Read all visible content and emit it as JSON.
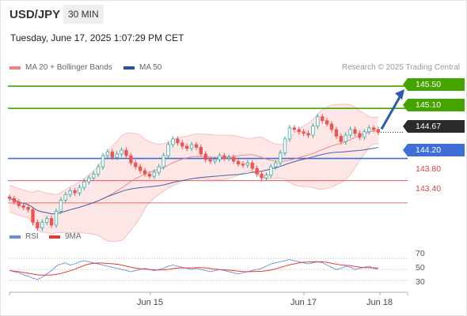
{
  "header": {
    "pair": "USD/JPY",
    "timeframe": "30 MIN",
    "datetime": "Tuesday, June 17, 2025 1:07:29 PM CET"
  },
  "legend": {
    "ma20": "MA 20 + Bollinger Bands",
    "ma50": "MA 50",
    "credit": "Research © 2025 Trading Central"
  },
  "rsi_legend": {
    "rsi": "RSI",
    "ma": "9MA"
  },
  "colors": {
    "green": "#44a400",
    "blue": "#3e6ed6",
    "red": "#d64545",
    "bullish": "#26a69a",
    "bearish": "#ef5350",
    "band": "#fde2e2",
    "ma50": "#4a5fa8",
    "rsi": "#6b8fd6",
    "rsi_ma": "#e53935"
  },
  "chart_data": {
    "type": "candlestick",
    "instrument": "USD/JPY",
    "timeframe": "30 MIN",
    "ylim": [
      143.0,
      145.7
    ],
    "levels": [
      {
        "label": "145.50",
        "value": 145.5,
        "kind": "resistance",
        "color": "green"
      },
      {
        "label": "145.10",
        "value": 145.1,
        "kind": "resistance",
        "color": "green"
      },
      {
        "label": "144.67",
        "value": 144.67,
        "kind": "current",
        "color": "dark"
      },
      {
        "label": "144.20",
        "value": 144.2,
        "kind": "pivot",
        "color": "blue"
      },
      {
        "label": "143.80",
        "value": 143.8,
        "kind": "support",
        "color": "red"
      },
      {
        "label": "143.40",
        "value": 143.4,
        "kind": "support",
        "color": "red"
      }
    ],
    "x_ticks": [
      "Jun 15",
      "Jun 17",
      "Jun 18"
    ],
    "close": [
      143.48,
      143.42,
      143.35,
      143.32,
      143.28,
      143.05,
      142.95,
      143.05,
      143.12,
      143.0,
      143.25,
      143.45,
      143.55,
      143.62,
      143.58,
      143.68,
      143.78,
      143.85,
      143.92,
      144.05,
      144.25,
      144.32,
      144.22,
      144.28,
      144.35,
      144.25,
      144.12,
      144.05,
      143.98,
      143.92,
      143.88,
      143.95,
      144.05,
      144.25,
      144.45,
      144.55,
      144.48,
      144.42,
      144.38,
      144.45,
      144.4,
      144.28,
      144.18,
      144.15,
      144.18,
      144.25,
      144.2,
      144.22,
      144.15,
      144.1,
      144.08,
      144.12,
      144.02,
      143.92,
      143.85,
      143.9,
      144.05,
      144.12,
      144.3,
      144.55,
      144.75,
      144.72,
      144.68,
      144.65,
      144.62,
      144.78,
      144.95,
      144.88,
      144.82,
      144.72,
      144.6,
      144.5,
      144.62,
      144.72,
      144.65,
      144.58,
      144.68,
      144.75,
      144.72,
      144.67
    ],
    "rsi": [
      48,
      46,
      44,
      40,
      38,
      34,
      32,
      36,
      42,
      48,
      56,
      60,
      62,
      58,
      60,
      64,
      66,
      64,
      62,
      60,
      58,
      56,
      54,
      52,
      50,
      48,
      46,
      48,
      50,
      52,
      50,
      48,
      50,
      52,
      56,
      58,
      56,
      54,
      52,
      50,
      52,
      50,
      48,
      46,
      48,
      50,
      48,
      46,
      44,
      42,
      44,
      46,
      48,
      50,
      52,
      56,
      60,
      62,
      64,
      66,
      68,
      66,
      64,
      62,
      60,
      62,
      64,
      62,
      58,
      54,
      50,
      52,
      56,
      54,
      50,
      52,
      54,
      56,
      52,
      50
    ],
    "rsi_ticks": [
      "70",
      "50",
      "30"
    ],
    "rsi_ylim": [
      20,
      80
    ]
  }
}
